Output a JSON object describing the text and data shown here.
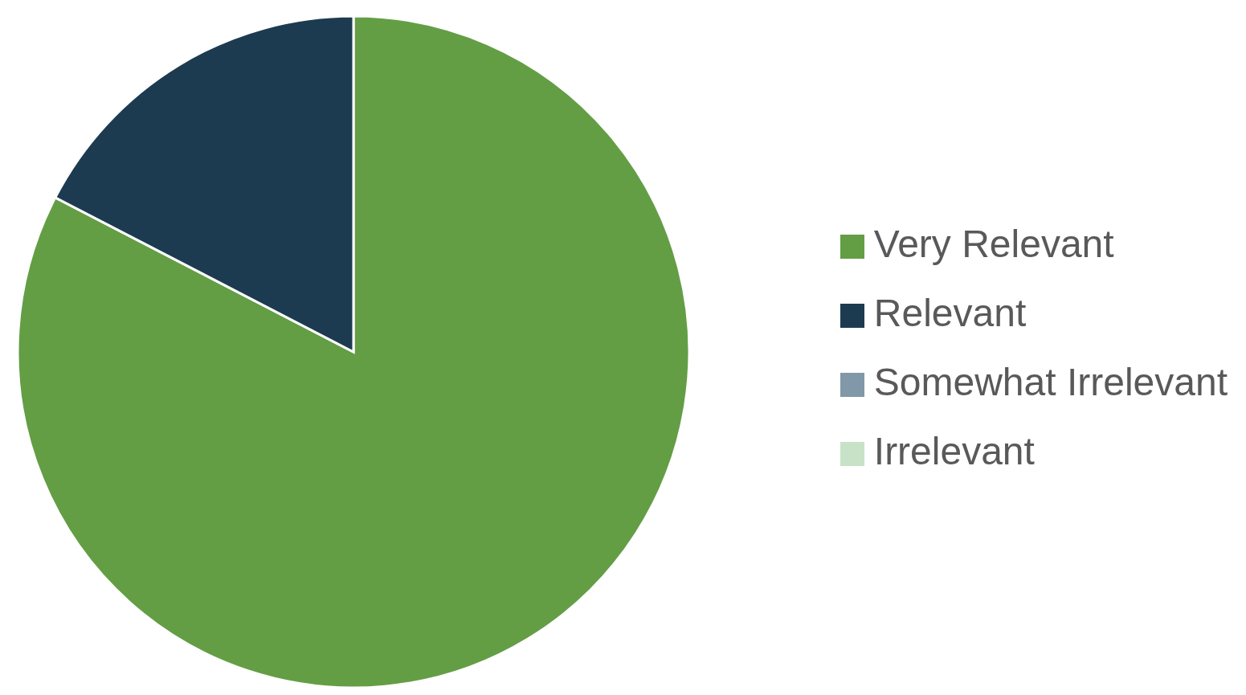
{
  "chart_data": {
    "type": "pie",
    "categories": [
      "Very Relevant",
      "Relevant",
      "Somewhat Irrelevant",
      "Irrelevant"
    ],
    "values": [
      82.6,
      17.4,
      0,
      0
    ],
    "colors": [
      "#639e45",
      "#1d3b50",
      "#8098a8",
      "#c8e2c8"
    ],
    "legend": "right"
  }
}
